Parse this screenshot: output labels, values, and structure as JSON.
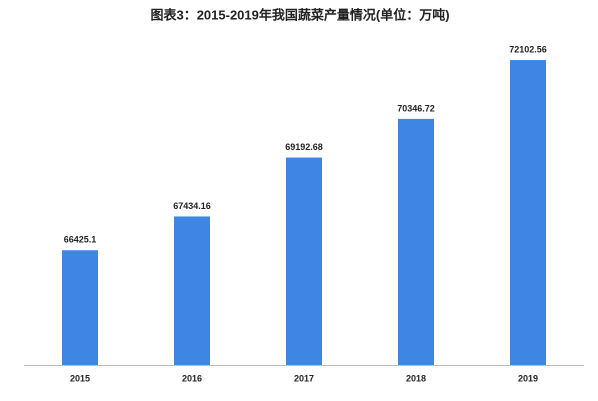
{
  "chart_data": {
    "type": "bar",
    "title": "图表3：2015-2019年我国蔬菜产量情况(单位：万吨)",
    "categories": [
      "2015",
      "2016",
      "2017",
      "2018",
      "2019"
    ],
    "values": [
      66425.1,
      67434.16,
      69192.68,
      70346.72,
      72102.56
    ],
    "color": "#3f86e4",
    "ylim": [
      63000,
      73000
    ],
    "grid": false
  }
}
